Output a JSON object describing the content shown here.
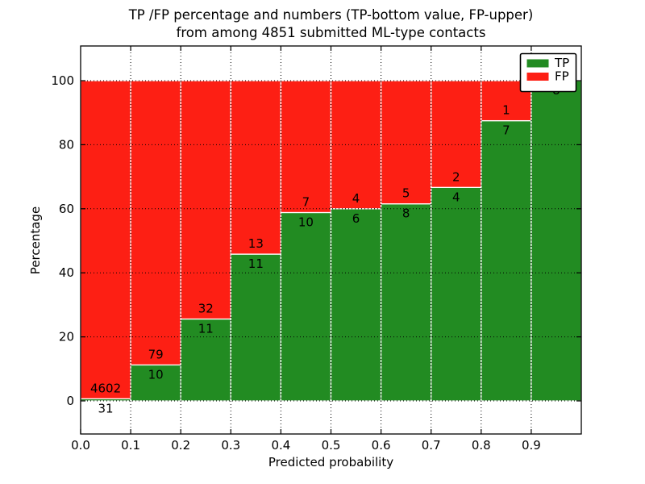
{
  "title": {
    "line1": "TP /FP percentage and numbers (TP-bottom value, FP-upper)",
    "line2": "from among 4851 submitted ML-type contacts"
  },
  "axes": {
    "xlabel": "Predicted probability",
    "ylabel": "Percentage",
    "x_tick_labels": [
      "0.0",
      "0.1",
      "0.2",
      "0.3",
      "0.4",
      "0.5",
      "0.6",
      "0.7",
      "0.8",
      "0.9"
    ],
    "y_tick_labels": [
      "0",
      "20",
      "40",
      "60",
      "80",
      "100"
    ],
    "y_tick_values": [
      0,
      20,
      40,
      60,
      80,
      100
    ],
    "xlim": [
      0.0,
      1.0
    ],
    "ylim": [
      0,
      100
    ],
    "grid": "dotted"
  },
  "legend": {
    "position": "upper right",
    "entries": [
      {
        "label": "TP",
        "color": "#228b22"
      },
      {
        "label": "FP",
        "color": "#fd1f14"
      }
    ]
  },
  "colors": {
    "tp": "#228b22",
    "fp": "#fd1f14",
    "bar_edge": "#ffffff",
    "grid": "#000000",
    "frame": "#000000",
    "background": "#ffffff",
    "text": "#000000"
  },
  "chart_data": {
    "type": "bar",
    "variant": "stacked-percentage-histogram",
    "title": "TP /FP percentage and numbers (TP-bottom value, FP-upper)\nfrom among 4851 submitted ML-type contacts",
    "xlabel": "Predicted probability",
    "ylabel": "Percentage",
    "total_contacts": 4851,
    "bin_width": 0.1,
    "categories": [
      "0.0-0.1",
      "0.1-0.2",
      "0.2-0.3",
      "0.3-0.4",
      "0.4-0.5",
      "0.5-0.6",
      "0.6-0.7",
      "0.7-0.8",
      "0.8-0.9",
      "0.9-1.0"
    ],
    "bin_starts": [
      0.0,
      0.1,
      0.2,
      0.3,
      0.4,
      0.5,
      0.6,
      0.7,
      0.8,
      0.9
    ],
    "series": [
      {
        "name": "TP",
        "stack_position": "bottom",
        "color": "#228b22",
        "counts": [
          31,
          10,
          11,
          11,
          10,
          6,
          8,
          4,
          7,
          8
        ]
      },
      {
        "name": "FP",
        "stack_position": "top",
        "color": "#fd1f14",
        "counts": [
          4602,
          79,
          32,
          13,
          7,
          4,
          5,
          2,
          1,
          0
        ]
      }
    ],
    "tp_percent": [
      0.67,
      11.24,
      25.58,
      45.83,
      58.82,
      60.0,
      61.54,
      66.67,
      87.5,
      100.0
    ],
    "bar_total_percent": 100,
    "labels_shown": "counts on each segment (TP below boundary, FP above boundary)",
    "legend_position": "upper right",
    "grid": true
  }
}
